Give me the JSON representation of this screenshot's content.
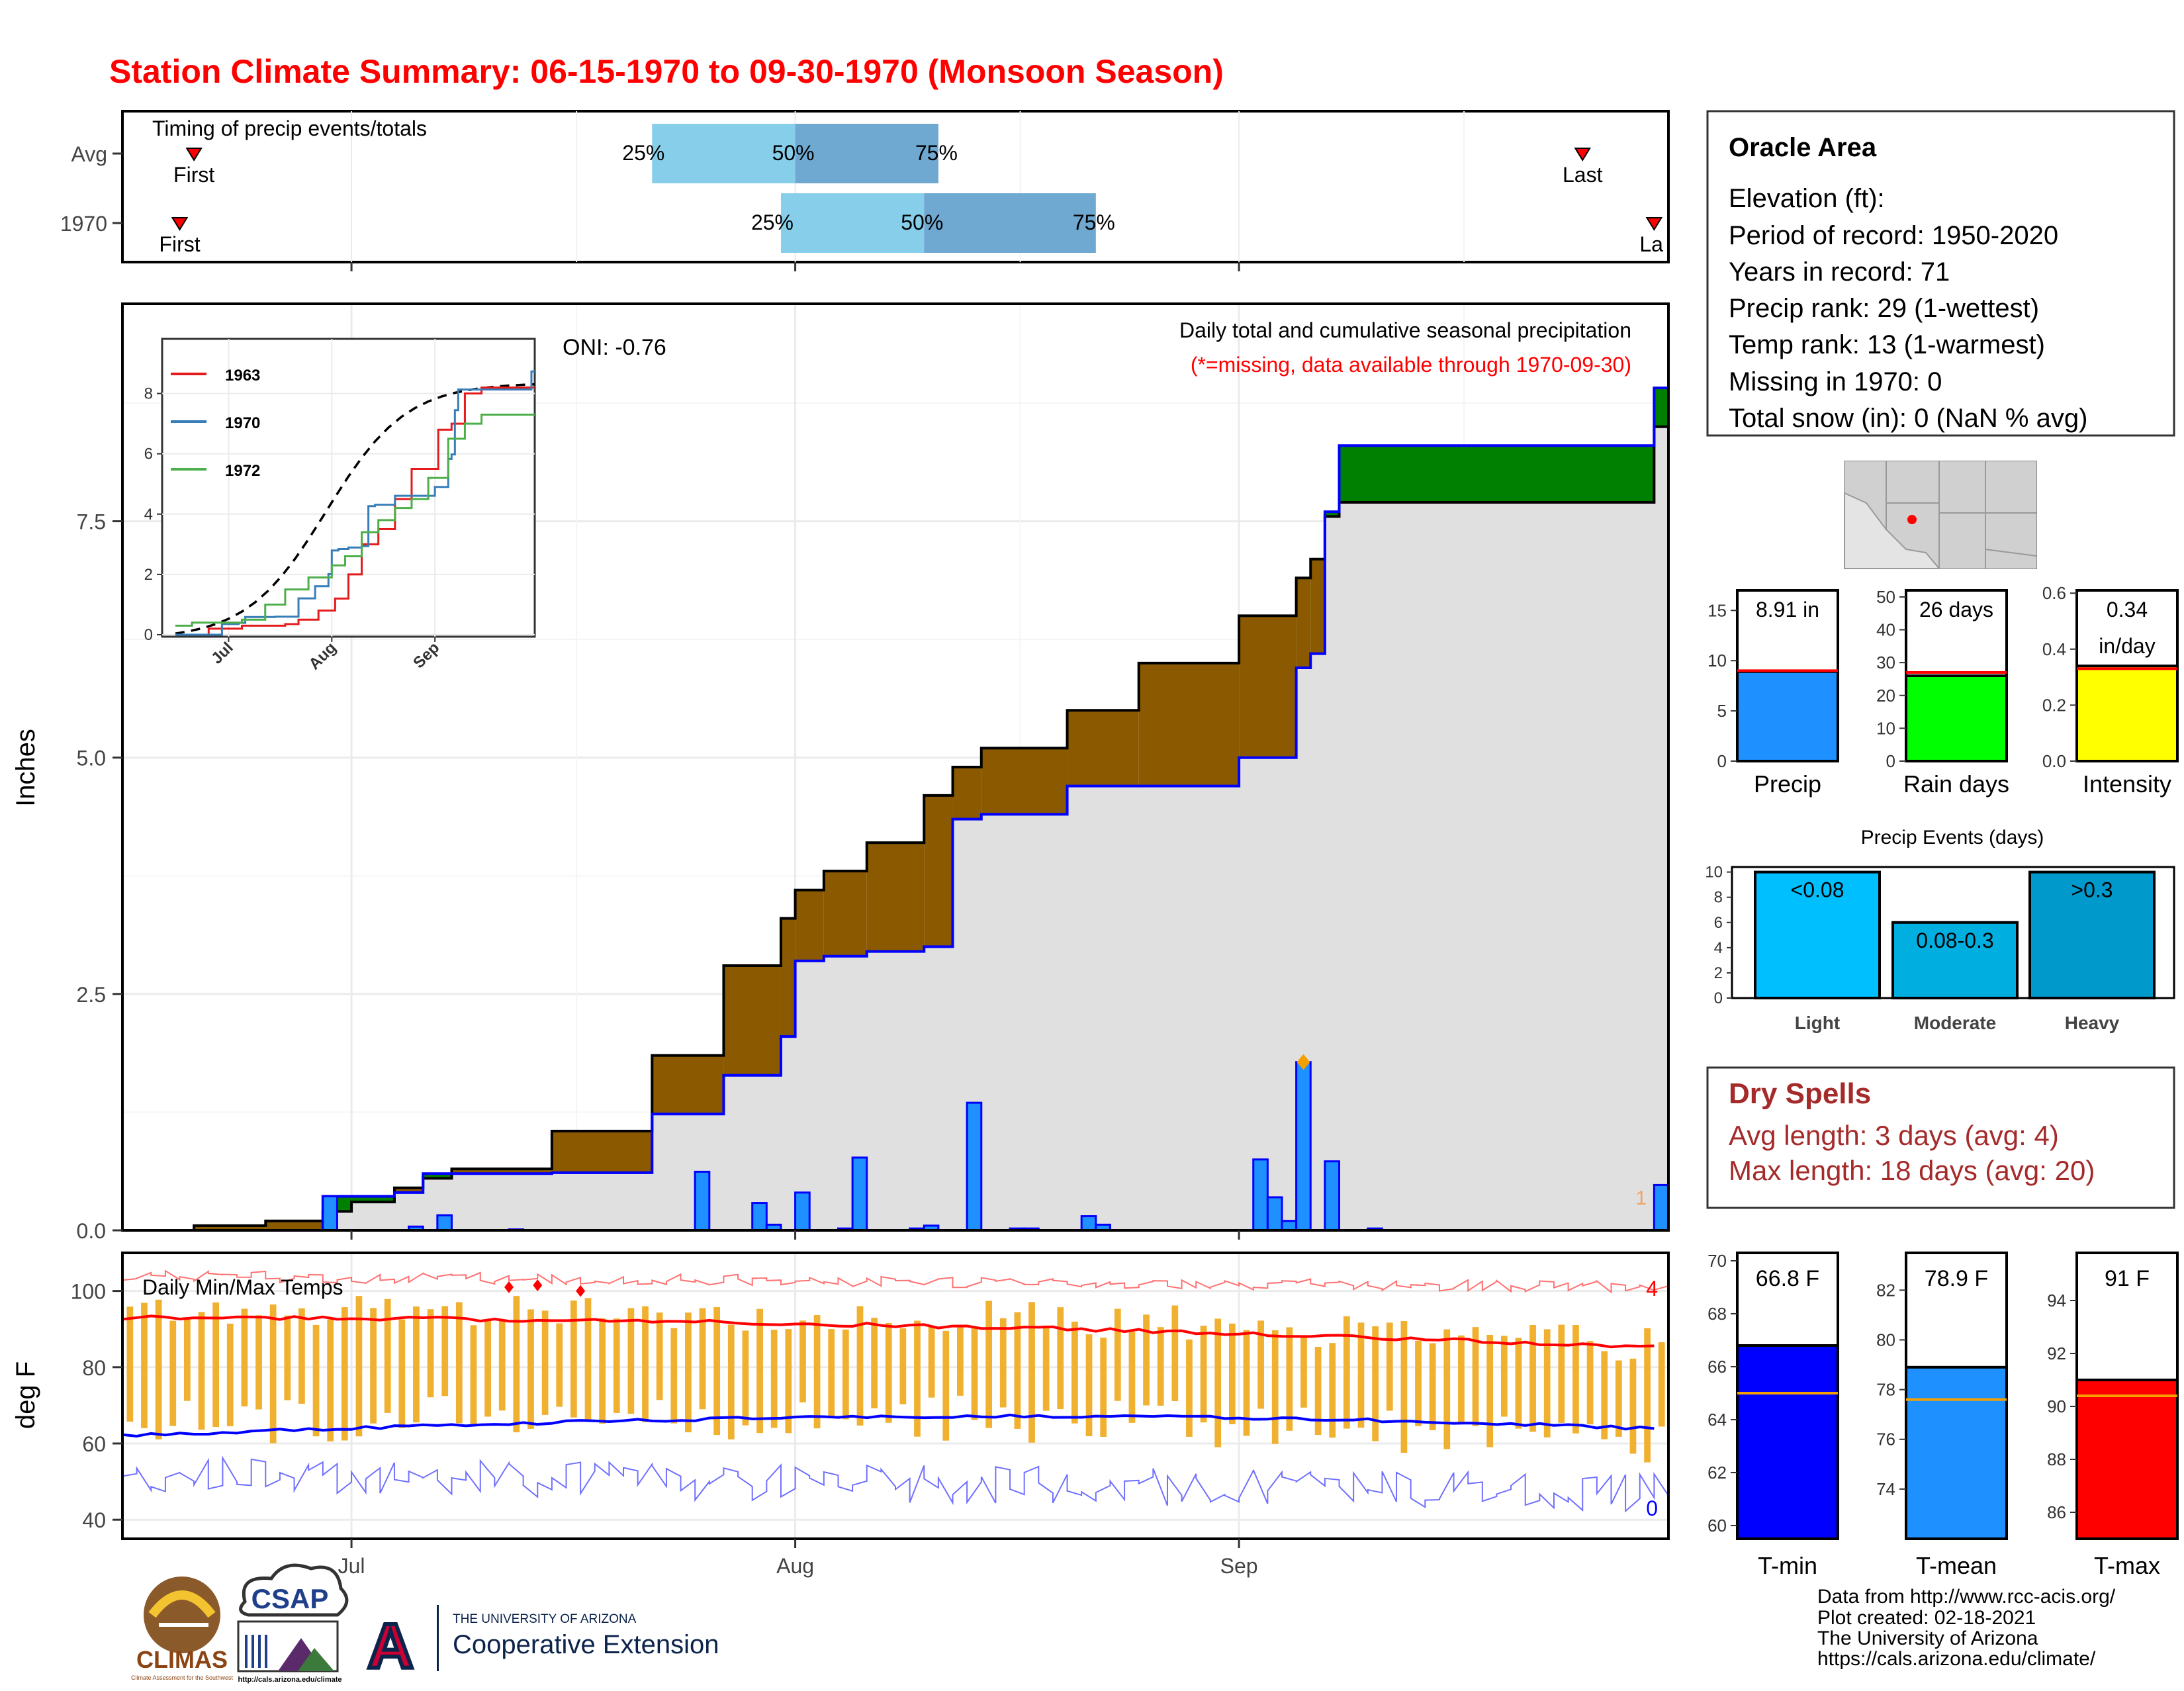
{
  "title": "Station Climate Summary: 06-15-1970 to 09-30-1970 (Monsoon Season)",
  "colors": {
    "title": "#ff0000",
    "cum_fill": "#e0e0e0",
    "deficit": "#8b5a00",
    "surplus": "#008000",
    "daily_bar": "#1e90ff",
    "avg_line": "#000000",
    "year_line": "#0000ff",
    "q_light": "#87ceeb",
    "q_dark": "#6fa8d0",
    "tmax": "#ff0000",
    "tmin": "#0000ff",
    "temp_bar": "#f0b030",
    "dry_text": "#a52a2a",
    "marker": "#ff0000"
  },
  "timing_panel": {
    "label": "Timing of precip events/totals",
    "rows": [
      {
        "name": "Avg",
        "first_label": "First",
        "last_label": "Last",
        "first_date": "06-20",
        "last_date": "09-25",
        "q25_label": "25%",
        "q50_label": "50%",
        "q75_label": "75%",
        "q25": "07-22",
        "q50": "08-01",
        "q75": "08-11"
      },
      {
        "name": "1970",
        "first_label": "First",
        "last_label": "La",
        "first_date": "06-19",
        "last_date": "09-30",
        "q25_label": "25%",
        "q50_label": "50%",
        "q75_label": "75%",
        "q25": "07-31",
        "q50": "08-10",
        "q75": "08-22"
      }
    ]
  },
  "precip_panel": {
    "ylabel": "Inches",
    "yticks": [
      "0.0",
      "2.5",
      "5.0",
      "7.5"
    ],
    "ylim": [
      0,
      9.8
    ],
    "title_line1": "Daily total and cumulative seasonal precipitation",
    "title_line2": "(*=missing, data available through 1970-09-30)",
    "oni": "ONI: -0.76",
    "corner_count": "1",
    "xticks": [
      "Jul",
      "Aug",
      "Sep"
    ]
  },
  "inset": {
    "yticks": [
      "0",
      "2",
      "4",
      "6",
      "8"
    ],
    "xticks": [
      "Jul",
      "Aug",
      "Sep"
    ],
    "legend": [
      {
        "name": "1963",
        "color": "#e41a1c"
      },
      {
        "name": "1970",
        "color": "#377eb8"
      },
      {
        "name": "1972",
        "color": "#4daf4a"
      }
    ]
  },
  "temp_panel": {
    "ylabel": "deg F",
    "label": "Daily Min/Max Temps",
    "yticks": [
      "40",
      "60",
      "80",
      "100"
    ],
    "ylim": [
      35,
      110
    ],
    "count_max": "4",
    "count_min": "0",
    "xticks": [
      "Jul",
      "Aug",
      "Sep"
    ]
  },
  "station_box": {
    "name": "Oracle Area",
    "lines": [
      "Elevation (ft):",
      "Period of record: 1950-2020",
      "Years in record: 71",
      "Precip rank: 29 (1-wettest)",
      "Temp rank: 13 (1-warmest)",
      "Missing in 1970: 0",
      "Total snow (in): 0 (NaN % avg)"
    ]
  },
  "mini_bars": [
    {
      "label": "Precip",
      "value_label": "8.91 in",
      "value": 8.91,
      "avg": 9.0,
      "max": 17,
      "yticks": [
        "0",
        "5",
        "10",
        "15"
      ],
      "color": "#1e90ff"
    },
    {
      "label": "Rain days",
      "value_label": "26 days",
      "value": 26,
      "avg": 27,
      "max": 52,
      "yticks": [
        "0",
        "10",
        "20",
        "30",
        "40",
        "50"
      ],
      "color": "#00ff00"
    },
    {
      "label": "Intensity",
      "value_label": "0.34\nin/day",
      "value": 0.34,
      "avg": 0.33,
      "max": 0.61,
      "yticks": [
        "0.0",
        "0.2",
        "0.4",
        "0.6"
      ],
      "color": "#ffff00"
    }
  ],
  "events": {
    "title": "Precip Events (days)",
    "yticks": [
      "0",
      "2",
      "4",
      "6",
      "8",
      "10"
    ],
    "bars": [
      {
        "category": "Light",
        "label": "<0.08",
        "value": 10,
        "color": "#00bfff"
      },
      {
        "category": "Moderate",
        "label": "0.08-0.3",
        "value": 6,
        "color": "#00aee0"
      },
      {
        "category": "Heavy",
        "label": ">0.3",
        "value": 10,
        "color": "#0099cc"
      }
    ]
  },
  "dry_spells": {
    "title": "Dry Spells",
    "avg_line": "Avg length: 3 days (avg: 4)",
    "max_line": "Max length: 18 days (avg: 20)"
  },
  "temp_bars": [
    {
      "label": "T-min",
      "value_label": "66.8 F",
      "value": 66.8,
      "avg": 65.0,
      "min": 59.5,
      "max": 70.3,
      "yticks": [
        "60",
        "62",
        "64",
        "66",
        "68",
        "70"
      ],
      "color": "#0000ff"
    },
    {
      "label": "T-mean",
      "value_label": "78.9 F",
      "value": 78.9,
      "avg": 77.6,
      "min": 72.0,
      "max": 83.5,
      "yticks": [
        "74",
        "76",
        "78",
        "80",
        "82"
      ],
      "color": "#1e90ff"
    },
    {
      "label": "T-max",
      "value_label": "91 F",
      "value": 91.0,
      "avg": 90.4,
      "min": 85.0,
      "max": 95.8,
      "yticks": [
        "86",
        "88",
        "90",
        "92",
        "94"
      ],
      "color": "#ff0000"
    }
  ],
  "credits": [
    "Data from http://www.rcc-acis.org/",
    "Plot created: 02-18-2021",
    "The University of Arizona",
    "https://cals.arizona.edu/climate/"
  ],
  "logos": {
    "climas": "CLIMAS",
    "climas_sub": "Climate Assessment for the Southwest",
    "csap": "CSAP",
    "csap_url": "http://cals.arizona.edu/climate",
    "ua_top": "THE UNIVERSITY OF ARIZONA",
    "ua_bottom": "Cooperative Extension",
    "ua_mark": "A"
  },
  "chart_data": {
    "type": "area",
    "x": [
      "06-15",
      "06-20",
      "06-25",
      "06-29",
      "07-01",
      "07-04",
      "07-06",
      "07-08",
      "07-15",
      "07-22",
      "07-27",
      "07-31",
      "08-01",
      "08-03",
      "08-06",
      "08-10",
      "08-12",
      "08-14",
      "08-20",
      "08-25",
      "09-01",
      "09-05",
      "09-06",
      "09-07",
      "09-08",
      "09-30"
    ],
    "series": [
      {
        "name": "1970",
        "values": [
          0.0,
          0.0,
          0.0,
          0.36,
          0.36,
          0.4,
          0.6,
          0.6,
          0.61,
          1.23,
          1.64,
          2.05,
          2.85,
          2.9,
          2.95,
          3.0,
          4.35,
          4.4,
          4.7,
          4.7,
          5.0,
          5.95,
          6.1,
          7.6,
          8.3,
          8.91
        ]
      },
      {
        "values": [
          0.0,
          0.05,
          0.1,
          0.2,
          0.3,
          0.45,
          0.55,
          0.65,
          1.05,
          1.85,
          2.8,
          3.3,
          3.6,
          3.8,
          4.1,
          4.6,
          4.9,
          5.1,
          5.5,
          6.0,
          6.5,
          6.9,
          7.1,
          7.55,
          7.7,
          8.5
        ]
      }
    ],
    "daily_precip": [
      {
        "date": "06-29",
        "value": 0.36
      },
      {
        "date": "07-05",
        "value": 0.04
      },
      {
        "date": "07-07",
        "value": 0.16
      },
      {
        "date": "07-12",
        "value": 0.01
      },
      {
        "date": "07-25",
        "value": 0.62
      },
      {
        "date": "07-29",
        "value": 0.29
      },
      {
        "date": "07-30",
        "value": 0.06
      },
      {
        "date": "08-01",
        "value": 0.4
      },
      {
        "date": "08-04",
        "value": 0.02
      },
      {
        "date": "08-05",
        "value": 0.77
      },
      {
        "date": "08-09",
        "value": 0.02
      },
      {
        "date": "08-10",
        "value": 0.05
      },
      {
        "date": "08-13",
        "value": 1.35
      },
      {
        "date": "08-16",
        "value": 0.02
      },
      {
        "date": "08-17",
        "value": 0.02
      },
      {
        "date": "08-21",
        "value": 0.15
      },
      {
        "date": "08-22",
        "value": 0.06
      },
      {
        "date": "09-02",
        "value": 0.75
      },
      {
        "date": "09-03",
        "value": 0.35
      },
      {
        "date": "09-04",
        "value": 0.1
      },
      {
        "date": "09-05",
        "value": 1.78
      },
      {
        "date": "09-07",
        "value": 0.73
      },
      {
        "date": "09-10",
        "value": 0.02
      },
      {
        "date": "09-30",
        "value": 0.48
      }
    ],
    "xlabel": "",
    "ylabel": "Inches"
  }
}
